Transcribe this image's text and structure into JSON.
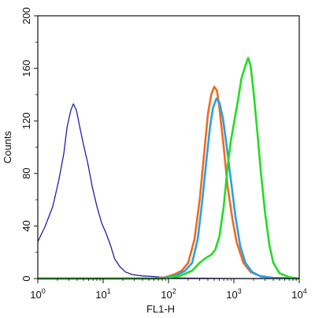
{
  "chart_data": {
    "type": "line",
    "xlabel": "FL1-H",
    "ylabel": "Counts",
    "x_scale": "log",
    "xlim": [
      1,
      10000
    ],
    "ylim": [
      0,
      200
    ],
    "x_ticks": [
      {
        "base": "10",
        "exp": "0",
        "value": 1
      },
      {
        "base": "10",
        "exp": "1",
        "value": 10
      },
      {
        "base": "10",
        "exp": "2",
        "value": 100
      },
      {
        "base": "10",
        "exp": "3",
        "value": 1000
      },
      {
        "base": "10",
        "exp": "4",
        "value": 10000
      }
    ],
    "y_ticks": [
      "0",
      "40",
      "80",
      "120",
      "160",
      "200"
    ],
    "grid": false,
    "series": [
      {
        "color": "#1f1fa8",
        "values": [
          [
            1,
            28
          ],
          [
            1.3,
            40
          ],
          [
            1.7,
            55
          ],
          [
            2.1,
            75
          ],
          [
            2.5,
            95
          ],
          [
            2.8,
            115
          ],
          [
            3.2,
            128
          ],
          [
            3.5,
            133
          ],
          [
            3.9,
            128
          ],
          [
            4.4,
            115
          ],
          [
            5,
            102
          ],
          [
            5.8,
            88
          ],
          [
            6.8,
            70
          ],
          [
            8,
            55
          ],
          [
            9.5,
            42
          ],
          [
            11,
            35
          ],
          [
            13,
            25
          ],
          [
            15,
            15
          ],
          [
            18,
            9
          ],
          [
            22,
            5
          ],
          [
            28,
            3
          ],
          [
            40,
            2
          ],
          [
            60,
            1.5
          ],
          [
            100,
            0.5
          ],
          [
            1000,
            0
          ],
          [
            10000,
            0
          ]
        ]
      },
      {
        "color": "#f26a1b",
        "values": [
          [
            1,
            0
          ],
          [
            60,
            0
          ],
          [
            90,
            1
          ],
          [
            120,
            3
          ],
          [
            160,
            6
          ],
          [
            200,
            12
          ],
          [
            250,
            30
          ],
          [
            300,
            60
          ],
          [
            350,
            95
          ],
          [
            400,
            125
          ],
          [
            450,
            140
          ],
          [
            500,
            146
          ],
          [
            550,
            143
          ],
          [
            600,
            130
          ],
          [
            700,
            100
          ],
          [
            800,
            70
          ],
          [
            950,
            45
          ],
          [
            1100,
            28
          ],
          [
            1400,
            12
          ],
          [
            1800,
            5
          ],
          [
            2500,
            2
          ],
          [
            4000,
            0.5
          ],
          [
            10000,
            0
          ]
        ]
      },
      {
        "color": "#2a9fe6",
        "values": [
          [
            1,
            0
          ],
          [
            70,
            0
          ],
          [
            100,
            1
          ],
          [
            140,
            3
          ],
          [
            180,
            6
          ],
          [
            230,
            12
          ],
          [
            280,
            30
          ],
          [
            330,
            60
          ],
          [
            380,
            90
          ],
          [
            430,
            115
          ],
          [
            480,
            130
          ],
          [
            540,
            137
          ],
          [
            600,
            134
          ],
          [
            680,
            122
          ],
          [
            780,
            100
          ],
          [
            900,
            75
          ],
          [
            1050,
            48
          ],
          [
            1250,
            25
          ],
          [
            1500,
            12
          ],
          [
            1900,
            5
          ],
          [
            2600,
            1.5
          ],
          [
            4000,
            0.5
          ],
          [
            10000,
            0
          ]
        ]
      },
      {
        "color": "#22dd22",
        "values": [
          [
            1,
            0
          ],
          [
            80,
            0
          ],
          [
            150,
            2
          ],
          [
            230,
            6
          ],
          [
            300,
            12
          ],
          [
            380,
            16
          ],
          [
            450,
            18
          ],
          [
            520,
            22
          ],
          [
            600,
            32
          ],
          [
            700,
            55
          ],
          [
            800,
            85
          ],
          [
            900,
            105
          ],
          [
            1000,
            118
          ],
          [
            1150,
            135
          ],
          [
            1300,
            152
          ],
          [
            1500,
            162
          ],
          [
            1650,
            168
          ],
          [
            1800,
            162
          ],
          [
            2000,
            142
          ],
          [
            2300,
            110
          ],
          [
            2600,
            80
          ],
          [
            3000,
            50
          ],
          [
            3500,
            25
          ],
          [
            4000,
            12
          ],
          [
            5000,
            4
          ],
          [
            7000,
            1
          ],
          [
            10000,
            0
          ]
        ]
      }
    ]
  }
}
